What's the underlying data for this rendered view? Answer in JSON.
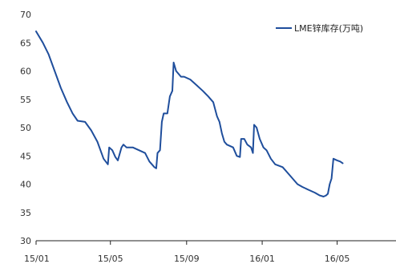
{
  "colors": {
    "series": "#1f4e9c",
    "axis": "#222222",
    "text": "#333333",
    "background": "#ffffff"
  },
  "chart_data": {
    "type": "line",
    "title": "",
    "xlabel": "",
    "ylabel": "",
    "ylim": [
      30,
      70
    ],
    "yticks": [
      30,
      35,
      40,
      45,
      50,
      55,
      60,
      65,
      70
    ],
    "xlim": [
      "2015-01-01",
      "2016-08-04"
    ],
    "xticks": [
      {
        "date": "2015-01-01",
        "label": "15/01"
      },
      {
        "date": "2015-05-01",
        "label": "15/05"
      },
      {
        "date": "2015-09-01",
        "label": "15/09"
      },
      {
        "date": "2016-01-01",
        "label": "16/01"
      },
      {
        "date": "2016-05-01",
        "label": "16/05"
      }
    ],
    "grid": false,
    "legend_position": "top-right",
    "series": [
      {
        "name": "LME锌库存(万吨)",
        "color": "#1f4e9c",
        "points": [
          [
            "2015-01-01",
            67.0
          ],
          [
            "2015-01-12",
            65.0
          ],
          [
            "2015-01-21",
            63.0
          ],
          [
            "2015-01-31",
            60.0
          ],
          [
            "2015-02-10",
            57.0
          ],
          [
            "2015-02-20",
            54.5
          ],
          [
            "2015-03-01",
            52.5
          ],
          [
            "2015-03-09",
            51.2
          ],
          [
            "2015-03-21",
            51.0
          ],
          [
            "2015-03-31",
            49.5
          ],
          [
            "2015-04-10",
            47.5
          ],
          [
            "2015-04-20",
            44.5
          ],
          [
            "2015-04-27",
            43.5
          ],
          [
            "2015-04-29",
            46.5
          ],
          [
            "2015-05-04",
            46.0
          ],
          [
            "2015-05-09",
            44.8
          ],
          [
            "2015-05-13",
            44.2
          ],
          [
            "2015-05-19",
            46.5
          ],
          [
            "2015-05-22",
            47.0
          ],
          [
            "2015-05-27",
            46.5
          ],
          [
            "2015-06-06",
            46.5
          ],
          [
            "2015-06-16",
            46.0
          ],
          [
            "2015-06-26",
            45.5
          ],
          [
            "2015-07-03",
            44.0
          ],
          [
            "2015-07-11",
            43.0
          ],
          [
            "2015-07-14",
            42.8
          ],
          [
            "2015-07-16",
            45.5
          ],
          [
            "2015-07-20",
            46.0
          ],
          [
            "2015-07-23",
            51.0
          ],
          [
            "2015-07-26",
            52.5
          ],
          [
            "2015-08-01",
            52.5
          ],
          [
            "2015-08-05",
            55.5
          ],
          [
            "2015-08-09",
            56.5
          ],
          [
            "2015-08-11",
            61.5
          ],
          [
            "2015-08-15",
            60.0
          ],
          [
            "2015-08-19",
            59.5
          ],
          [
            "2015-08-23",
            59.0
          ],
          [
            "2015-08-28",
            59.0
          ],
          [
            "2015-09-07",
            58.5
          ],
          [
            "2015-09-17",
            57.5
          ],
          [
            "2015-09-27",
            56.5
          ],
          [
            "2015-10-06",
            55.5
          ],
          [
            "2015-10-14",
            54.5
          ],
          [
            "2015-10-20",
            52.0
          ],
          [
            "2015-10-24",
            51.0
          ],
          [
            "2015-10-28",
            49.0
          ],
          [
            "2015-11-01",
            47.5
          ],
          [
            "2015-11-05",
            47.0
          ],
          [
            "2015-11-15",
            46.5
          ],
          [
            "2015-11-21",
            45.0
          ],
          [
            "2015-11-26",
            44.8
          ],
          [
            "2015-11-28",
            48.0
          ],
          [
            "2015-12-03",
            48.0
          ],
          [
            "2015-12-08",
            47.0
          ],
          [
            "2015-12-14",
            46.5
          ],
          [
            "2015-12-17",
            45.5
          ],
          [
            "2015-12-19",
            50.5
          ],
          [
            "2015-12-23",
            50.0
          ],
          [
            "2015-12-28",
            48.0
          ],
          [
            "2016-01-03",
            46.5
          ],
          [
            "2016-01-08",
            46.0
          ],
          [
            "2016-01-15",
            44.5
          ],
          [
            "2016-01-22",
            43.5
          ],
          [
            "2016-02-03",
            43.0
          ],
          [
            "2016-02-11",
            42.0
          ],
          [
            "2016-02-19",
            41.0
          ],
          [
            "2016-02-27",
            40.0
          ],
          [
            "2016-03-06",
            39.5
          ],
          [
            "2016-03-16",
            39.0
          ],
          [
            "2016-03-26",
            38.5
          ],
          [
            "2016-04-03",
            38.0
          ],
          [
            "2016-04-09",
            37.8
          ],
          [
            "2016-04-13",
            38.0
          ],
          [
            "2016-04-16",
            38.3
          ],
          [
            "2016-04-19",
            40.0
          ],
          [
            "2016-04-22",
            41.0
          ],
          [
            "2016-04-25",
            44.5
          ],
          [
            "2016-05-01",
            44.2
          ],
          [
            "2016-05-06",
            44.0
          ],
          [
            "2016-05-10",
            43.7
          ]
        ]
      }
    ]
  }
}
